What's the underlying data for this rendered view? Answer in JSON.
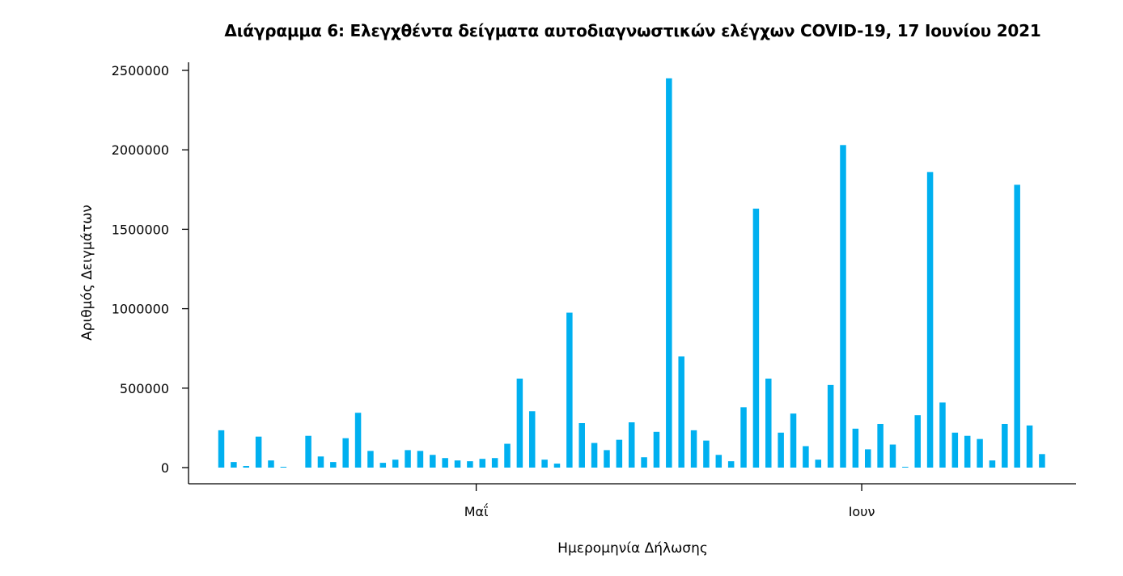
{
  "chart_data": {
    "type": "bar",
    "title": "Διάγραμμα 6: Ελεγχθέντα δείγματα αυτοδιαγνωστικών ελέγχων COVID-19, 17 Ιουνίου 2021",
    "xlabel": "Ημερομηνία Δήλωσης",
    "ylabel": "Αριθμός Δειγμάτων",
    "ylim": [
      0,
      2500000
    ],
    "yticks": [
      "0",
      "500000",
      "1000000",
      "1500000",
      "2000000",
      "2500000"
    ],
    "xtick_labels": [
      {
        "label": "Μαΐ",
        "at_bar_index": 20.5
      },
      {
        "label": "Ιουν",
        "at_bar_index": 51.5
      }
    ],
    "bar_color": "#00b0f0",
    "grid": false,
    "legend": "none",
    "values": [
      235000,
      35000,
      10000,
      195000,
      45000,
      5000,
      0,
      200000,
      70000,
      35000,
      185000,
      345000,
      105000,
      30000,
      50000,
      110000,
      105000,
      80000,
      60000,
      45000,
      40000,
      55000,
      60000,
      150000,
      560000,
      355000,
      50000,
      25000,
      975000,
      280000,
      155000,
      110000,
      175000,
      285000,
      65000,
      225000,
      2450000,
      700000,
      235000,
      170000,
      80000,
      40000,
      380000,
      1630000,
      560000,
      220000,
      340000,
      135000,
      50000,
      520000,
      2030000,
      245000,
      115000,
      275000,
      145000,
      5000,
      330000,
      1860000,
      410000,
      220000,
      200000,
      180000,
      45000,
      275000,
      1780000,
      265000,
      85000
    ]
  }
}
